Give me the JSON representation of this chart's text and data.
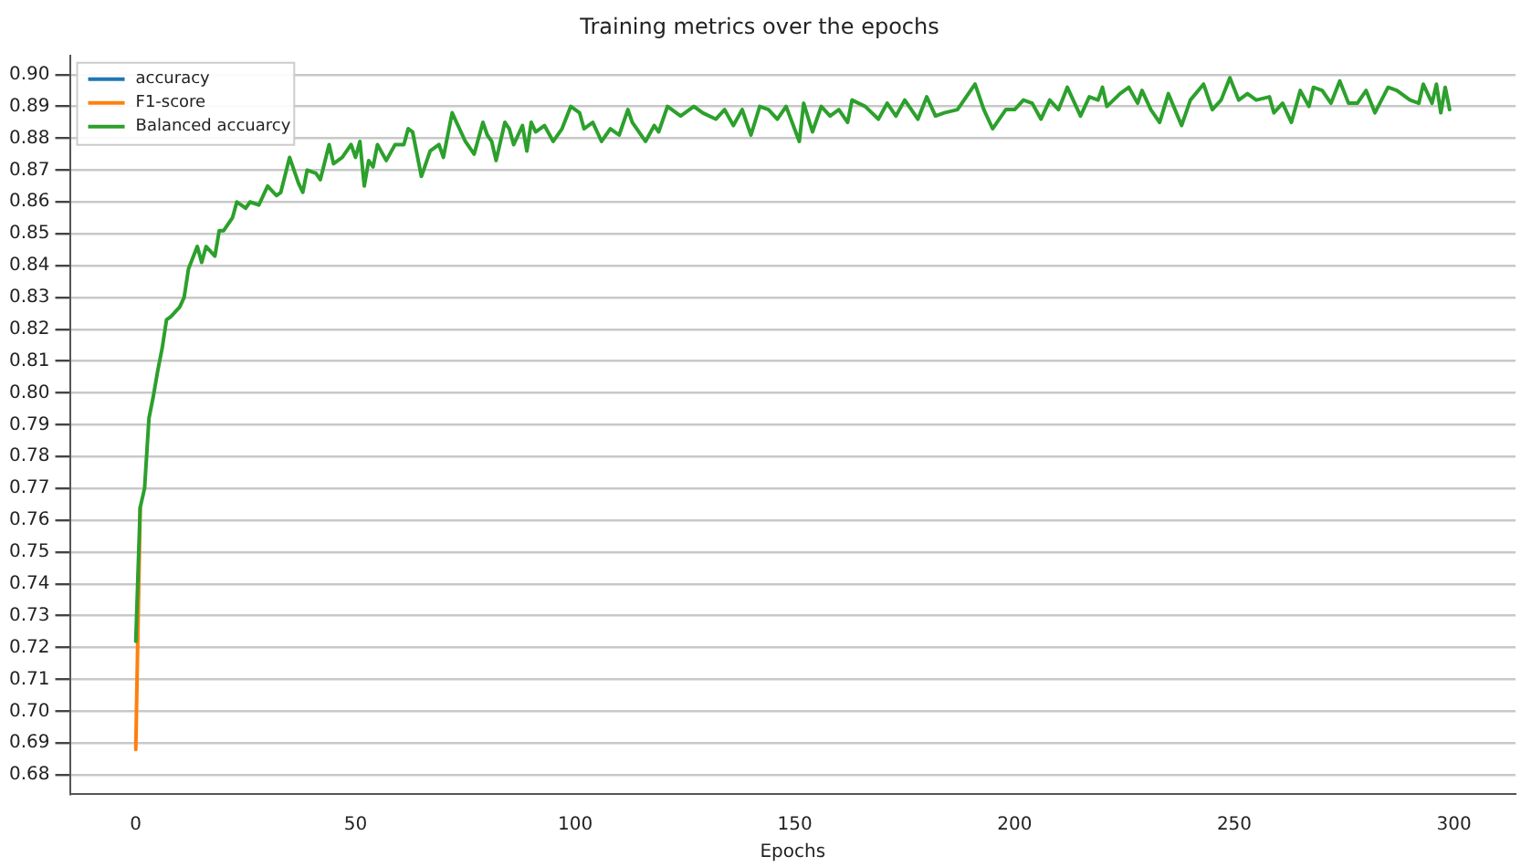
{
  "chart_data": {
    "type": "line",
    "title": "Training metrics over the epochs",
    "xlabel": "Epochs",
    "x": [
      0,
      1,
      2,
      3,
      4,
      5,
      6,
      7,
      8,
      10,
      11,
      12,
      14,
      15,
      16,
      18,
      19,
      20,
      21,
      22,
      23,
      25,
      26,
      28,
      30,
      32,
      33,
      35,
      37,
      38,
      39,
      41,
      42,
      44,
      45,
      47,
      49,
      50,
      51,
      52,
      53,
      54,
      55,
      57,
      59,
      61,
      62,
      63,
      65,
      67,
      69,
      70,
      72,
      74,
      75,
      77,
      79,
      80,
      81,
      82,
      84,
      85,
      86,
      88,
      89,
      90,
      91,
      93,
      95,
      97,
      99,
      101,
      102,
      104,
      106,
      108,
      110,
      112,
      113,
      116,
      118,
      119,
      121,
      124,
      127,
      129,
      132,
      134,
      136,
      138,
      140,
      142,
      144,
      146,
      148,
      151,
      152,
      154,
      156,
      158,
      160,
      162,
      163,
      166,
      169,
      171,
      173,
      175,
      178,
      180,
      182,
      184,
      187,
      191,
      193,
      195,
      198,
      200,
      202,
      204,
      206,
      208,
      210,
      212,
      215,
      217,
      219,
      220,
      221,
      224,
      226,
      228,
      229,
      231,
      233,
      235,
      238,
      240,
      243,
      245,
      247,
      249,
      251,
      253,
      255,
      258,
      259,
      261,
      263,
      265,
      267,
      268,
      270,
      272,
      274,
      276,
      278,
      280,
      282,
      285,
      287,
      290,
      292,
      293,
      295,
      296,
      297,
      298,
      299
    ],
    "series": [
      {
        "name": "accuracy",
        "color": "#1f77b4",
        "values": [
          null,
          null,
          null,
          null,
          null,
          null,
          null,
          null,
          null,
          null,
          null,
          null,
          null,
          null,
          null,
          null,
          null,
          null,
          null,
          null,
          null,
          null,
          null,
          null,
          null,
          null,
          null,
          null,
          null,
          null,
          null,
          null,
          null,
          null,
          null,
          null,
          null,
          null,
          null,
          null,
          null,
          null,
          null,
          null,
          null,
          null,
          null,
          null,
          null,
          null,
          null,
          null,
          null,
          null,
          null,
          null,
          null,
          null,
          null,
          null,
          null,
          null,
          null,
          null,
          null,
          null,
          null,
          null,
          null,
          null,
          null,
          null,
          null,
          null,
          null,
          null,
          null,
          null,
          null,
          null,
          null,
          null,
          null,
          null,
          null,
          null,
          null,
          null,
          null,
          null,
          null,
          null,
          null,
          null,
          null,
          null,
          null,
          null,
          null,
          null,
          null,
          null,
          null,
          null,
          null,
          null,
          null,
          null,
          null,
          null,
          null,
          null,
          null,
          null,
          null,
          null,
          null,
          null,
          null,
          null,
          null,
          null,
          null,
          null,
          null,
          null,
          null,
          null,
          null,
          null,
          null,
          null,
          null,
          null,
          null,
          null,
          null,
          null,
          null,
          null,
          null,
          null,
          null,
          null,
          null,
          null,
          null,
          null,
          null,
          null,
          null,
          null,
          null,
          null,
          null,
          null,
          null,
          null,
          null,
          null,
          null,
          null,
          null,
          null,
          null,
          null,
          null,
          null,
          null
        ]
      },
      {
        "name": "F1-score",
        "color": "#ff7f0e",
        "values": [
          0.688,
          0.764,
          null,
          null,
          null,
          null,
          null,
          null,
          null,
          null,
          null,
          null,
          null,
          null,
          null,
          null,
          null,
          null,
          null,
          null,
          null,
          null,
          null,
          null,
          null,
          null,
          null,
          null,
          null,
          null,
          null,
          null,
          null,
          null,
          null,
          null,
          null,
          null,
          null,
          null,
          null,
          null,
          null,
          null,
          null,
          null,
          null,
          null,
          null,
          null,
          null,
          null,
          null,
          null,
          null,
          null,
          null,
          null,
          null,
          null,
          null,
          null,
          null,
          null,
          null,
          null,
          null,
          null,
          null,
          null,
          null,
          null,
          null,
          null,
          null,
          null,
          null,
          null,
          null,
          null,
          null,
          null,
          null,
          null,
          null,
          null,
          null,
          null,
          null,
          null,
          null,
          null,
          null,
          null,
          null,
          null,
          null,
          null,
          null,
          null,
          null,
          null,
          null,
          null,
          null,
          null,
          null,
          null,
          null,
          null,
          null,
          null,
          null,
          null,
          null,
          null,
          null,
          null,
          null,
          null,
          null,
          null,
          null,
          null,
          null,
          null,
          null,
          null,
          null,
          null,
          null,
          null,
          null,
          null,
          null,
          null,
          null,
          null,
          null,
          null,
          null,
          null,
          null,
          null,
          null,
          null,
          null,
          null,
          null,
          null,
          null,
          null,
          null,
          null,
          null,
          null,
          null,
          null,
          null,
          null,
          null,
          null,
          null,
          null,
          null,
          null,
          null,
          null,
          null
        ]
      },
      {
        "name": "Balanced accuarcy",
        "color": "#2ca02c",
        "values": [
          0.722,
          0.764,
          0.77,
          0.792,
          0.799,
          0.807,
          0.814,
          0.823,
          0.824,
          0.827,
          0.83,
          0.839,
          0.846,
          0.841,
          0.846,
          0.843,
          0.851,
          0.851,
          0.853,
          0.855,
          0.86,
          0.858,
          0.86,
          0.859,
          0.865,
          0.862,
          0.863,
          0.874,
          0.866,
          0.863,
          0.87,
          0.869,
          0.867,
          0.878,
          0.872,
          0.874,
          0.878,
          0.874,
          0.879,
          0.865,
          0.873,
          0.871,
          0.878,
          0.873,
          0.878,
          0.878,
          0.883,
          0.882,
          0.868,
          0.876,
          0.878,
          0.874,
          0.888,
          0.882,
          0.879,
          0.875,
          0.885,
          0.881,
          0.879,
          0.873,
          0.885,
          0.883,
          0.878,
          0.884,
          0.876,
          0.885,
          0.882,
          0.884,
          0.879,
          0.883,
          0.89,
          0.888,
          0.883,
          0.885,
          0.879,
          0.883,
          0.881,
          0.889,
          0.885,
          0.879,
          0.884,
          0.882,
          0.89,
          0.887,
          0.89,
          0.888,
          0.886,
          0.889,
          0.884,
          0.889,
          0.881,
          0.89,
          0.889,
          0.886,
          0.89,
          0.879,
          0.891,
          0.882,
          0.89,
          0.887,
          0.889,
          0.885,
          0.892,
          0.89,
          0.886,
          0.891,
          0.887,
          0.892,
          0.886,
          0.893,
          0.887,
          0.888,
          0.889,
          0.897,
          0.889,
          0.883,
          0.889,
          0.889,
          0.892,
          0.891,
          0.886,
          0.892,
          0.889,
          0.896,
          0.887,
          0.893,
          0.892,
          0.896,
          0.89,
          0.894,
          0.896,
          0.891,
          0.895,
          0.889,
          0.885,
          0.894,
          0.884,
          0.892,
          0.897,
          0.889,
          0.892,
          0.899,
          0.892,
          0.894,
          0.892,
          0.893,
          0.888,
          0.891,
          0.885,
          0.895,
          0.89,
          0.896,
          0.895,
          0.891,
          0.898,
          0.891,
          0.891,
          0.895,
          0.888,
          0.896,
          0.895,
          0.892,
          0.891,
          0.897,
          0.891,
          0.897,
          0.888,
          0.896,
          0.889
        ]
      }
    ],
    "xlim": [
      -15,
      314
    ],
    "xticks": [
      0,
      50,
      100,
      150,
      200,
      250,
      300
    ],
    "ylim": [
      0.674,
      0.906
    ],
    "yticks": [
      0.68,
      0.69,
      {
        "value": 0.7,
        "label": "0.70"
      },
      0.71,
      0.72,
      0.73,
      0.74,
      0.75,
      0.76,
      0.77,
      0.78,
      0.79,
      {
        "value": 0.8,
        "label": "0.80"
      },
      0.81,
      0.82,
      0.83,
      0.84,
      0.85,
      0.86,
      0.87,
      0.88,
      0.89,
      {
        "value": 0.9,
        "label": "0.90"
      }
    ],
    "grid": "y",
    "legend": "top left",
    "line_style": "solid",
    "marker": "none"
  }
}
